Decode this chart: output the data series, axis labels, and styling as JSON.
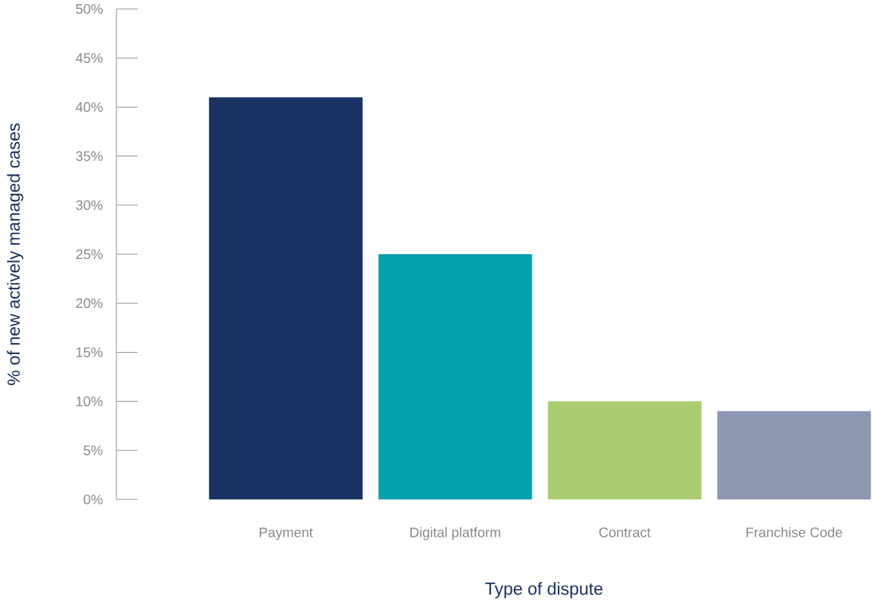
{
  "chart_data": {
    "type": "bar",
    "xlabel": "Type of dispute",
    "ylabel": "% of new actively managed cases",
    "categories": [
      "Payment",
      "Digital platform",
      "Contract",
      "Franchise Code"
    ],
    "values": [
      41,
      25,
      10,
      9
    ],
    "colors": [
      "#1b3362",
      "#00a1ad",
      "#abcd72",
      "#8d98b2"
    ],
    "ylim": [
      0,
      50
    ],
    "yticks": [
      {
        "value": 0,
        "label": "0%"
      },
      {
        "value": 5,
        "label": "5%"
      },
      {
        "value": 10,
        "label": "10%"
      },
      {
        "value": 15,
        "label": "15%"
      },
      {
        "value": 20,
        "label": "20%"
      },
      {
        "value": 25,
        "label": "25%"
      },
      {
        "value": 30,
        "label": "30%"
      },
      {
        "value": 35,
        "label": "35%"
      },
      {
        "value": 40,
        "label": "40%"
      },
      {
        "value": 45,
        "label": "45%"
      },
      {
        "value": 50,
        "label": "50%"
      }
    ]
  }
}
